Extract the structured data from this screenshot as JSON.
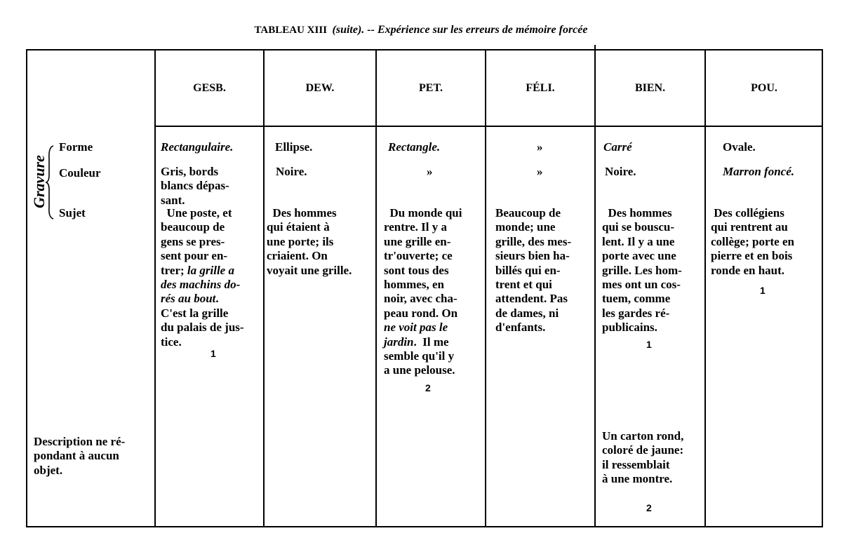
{
  "title": {
    "main": "TABLEAU XIII",
    "suite": "(suite). -- Expérience sur les erreurs de mémoire forcée"
  },
  "row_labels": {
    "group": "Gravure",
    "forme": "Forme",
    "couleur": "Couleur",
    "sujet": "Sujet",
    "description": "Description ne ré-|pondant à aucun|objet."
  },
  "columns": [
    {
      "key": "gesb",
      "header": "GESB.",
      "forme": [
        [
          {
            "text": "Rectangulaire.",
            "style": "i"
          }
        ]
      ],
      "couleur": [
        [
          {
            "text": "Gris, bords"
          }
        ],
        [
          {
            "text": "blancs dépas-"
          }
        ],
        [
          {
            "text": "sant."
          }
        ]
      ],
      "sujet": [
        [
          {
            "text": "  Une poste, et"
          }
        ],
        [
          {
            "text": "beaucoup de"
          }
        ],
        [
          {
            "text": "gens se pres-"
          }
        ],
        [
          {
            "text": "sent pour en-"
          }
        ],
        [
          {
            "text": "trer; "
          },
          {
            "text": "la grille a",
            "style": "i"
          }
        ],
        [
          {
            "text": "des machins do-",
            "style": "i"
          }
        ],
        [
          {
            "text": "rés au bout",
            "style": "i"
          },
          {
            "text": "."
          }
        ],
        [
          {
            "text": "C'est la grille"
          }
        ],
        [
          {
            "text": "du palais de jus-"
          }
        ],
        [
          {
            "text": "tice."
          }
        ]
      ],
      "note": "1"
    },
    {
      "key": "dew",
      "header": "DEW.",
      "forme": [
        [
          {
            "text": "Ellipse."
          }
        ]
      ],
      "couleur": [
        [
          {
            "text": "Noire."
          }
        ]
      ],
      "sujet": [
        [
          {
            "text": "  Des hommes"
          }
        ],
        [
          {
            "text": "qui étaient à"
          }
        ],
        [
          {
            "text": "une porte; ils"
          }
        ],
        [
          {
            "text": "criaient. On"
          }
        ],
        [
          {
            "text": "voyait une grille."
          }
        ]
      ]
    },
    {
      "key": "pet",
      "header": "PET.",
      "forme": [
        [
          {
            "text": "Rectangle.",
            "style": "i"
          }
        ]
      ],
      "couleur": [
        [
          {
            "text": "»"
          }
        ]
      ],
      "sujet": [
        [
          {
            "text": "  Du monde qui"
          }
        ],
        [
          {
            "text": "rentre. Il y a"
          }
        ],
        [
          {
            "text": "une grille en-"
          }
        ],
        [
          {
            "text": "tr'ouverte; ce"
          }
        ],
        [
          {
            "text": "sont tous des"
          }
        ],
        [
          {
            "text": "hommes, en"
          }
        ],
        [
          {
            "text": "noir, avec cha-"
          }
        ],
        [
          {
            "text": "peau rond. On"
          }
        ],
        [
          {
            "text": "ne voit pas le",
            "style": "i"
          }
        ],
        [
          {
            "text": "jardin",
            "style": "i"
          },
          {
            "text": ".  Il me"
          }
        ],
        [
          {
            "text": "semble qu'il y"
          }
        ],
        [
          {
            "text": "a une pelouse."
          }
        ]
      ],
      "note": "2"
    },
    {
      "key": "feli",
      "header": "FÉLI.",
      "forme": [
        [
          {
            "text": "»"
          }
        ]
      ],
      "couleur": [
        [
          {
            "text": "»"
          }
        ]
      ],
      "sujet": [
        [
          {
            "text": "Beaucoup de"
          }
        ],
        [
          {
            "text": "monde; une"
          }
        ],
        [
          {
            "text": "grille, des mes-"
          }
        ],
        [
          {
            "text": "sieurs bien ha-"
          }
        ],
        [
          {
            "text": "billés qui en-"
          }
        ],
        [
          {
            "text": "trent et qui"
          }
        ],
        [
          {
            "text": "attendent. Pas"
          }
        ],
        [
          {
            "text": "de dames, ni"
          }
        ],
        [
          {
            "text": "d'enfants."
          }
        ]
      ]
    },
    {
      "key": "bien",
      "header": "BIEN.",
      "forme": [
        [
          {
            "text": "Carré",
            "style": "i"
          }
        ]
      ],
      "couleur": [
        [
          {
            "text": "Noire."
          }
        ]
      ],
      "sujet": [
        [
          {
            "text": "  Des hommes"
          }
        ],
        [
          {
            "text": "qui se bouscu-"
          }
        ],
        [
          {
            "text": "lent. Il y a une"
          }
        ],
        [
          {
            "text": "porte avec une"
          }
        ],
        [
          {
            "text": "grille. Les hom-"
          }
        ],
        [
          {
            "text": "mes ont un cos-"
          }
        ],
        [
          {
            "text": "tuem, comme"
          }
        ],
        [
          {
            "text": "les gardes ré-"
          }
        ],
        [
          {
            "text": "publicains."
          }
        ]
      ],
      "note": "1",
      "description": [
        [
          {
            "text": "Un carton rond,"
          }
        ],
        [
          {
            "text": "coloré de jaune:"
          }
        ],
        [
          {
            "text": "il ressemblait"
          }
        ],
        [
          {
            "text": "à une montre."
          }
        ]
      ],
      "description_note": "2"
    },
    {
      "key": "pou",
      "header": "POU.",
      "forme": [
        [
          {
            "text": "Ovale."
          }
        ]
      ],
      "couleur": [
        [
          {
            "text": "Marron foncé.",
            "style": "i"
          }
        ]
      ],
      "sujet": [
        [
          {
            "text": " Des collégiens"
          }
        ],
        [
          {
            "text": "qui rentrent au"
          }
        ],
        [
          {
            "text": "collège; porte en"
          }
        ],
        [
          {
            "text": "pierre et en bois"
          }
        ],
        [
          {
            "text": "ronde en haut."
          }
        ]
      ],
      "note": "1"
    }
  ]
}
